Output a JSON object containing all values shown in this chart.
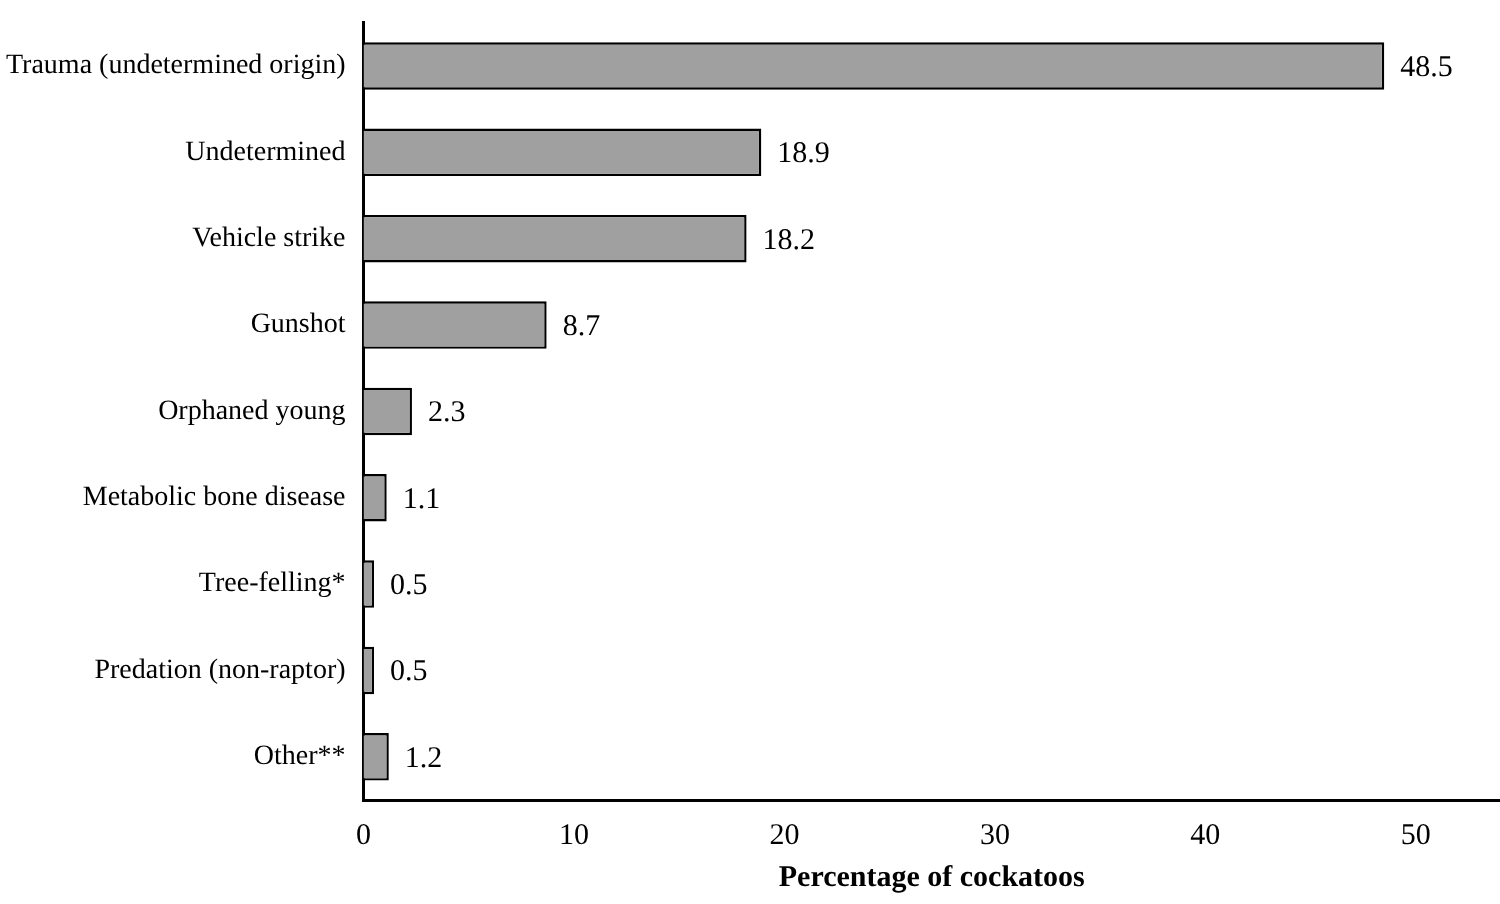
{
  "chart_data": {
    "type": "bar",
    "orientation": "horizontal",
    "xlabel": "Percentage of cockatoos",
    "categories": [
      "Trauma (undetermined origin)",
      "Undetermined",
      "Vehicle strike",
      "Gunshot",
      "Orphaned young",
      "Metabolic bone disease",
      "Tree-felling*",
      "Predation (non-raptor)",
      "Other**"
    ],
    "values": [
      48.5,
      18.9,
      18.2,
      8.7,
      2.3,
      1.1,
      0.5,
      0.5,
      1.2
    ],
    "color": "#a0a0a0",
    "data_labels": true,
    "xlim": [
      0,
      54
    ],
    "xticks": [
      0,
      10,
      20,
      30,
      40,
      50
    ],
    "grid": false,
    "legend": false
  }
}
